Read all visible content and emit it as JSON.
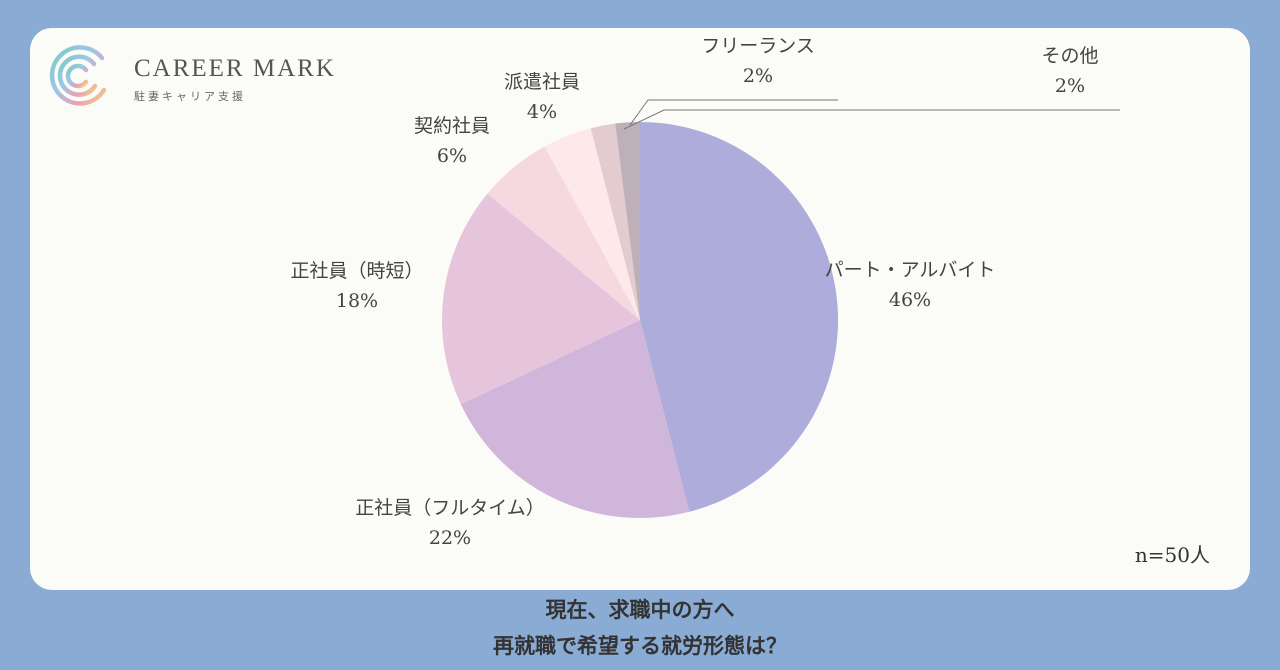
{
  "brand": {
    "name": "CAREER MARK",
    "tagline": "駐妻キャリア支援"
  },
  "sample_size": "n=50人",
  "title_lines": [
    "現在、求職中の方へ",
    "再就職で希望する就労形態は？"
  ],
  "chart_data": {
    "type": "pie",
    "title": "現在、求職中の方へ 再就職で希望する就労形態は？",
    "unit": "%",
    "start": "12 o'clock, clockwise",
    "slices": [
      {
        "label": "パート・アルバイト",
        "value": 46,
        "display": "46%",
        "color": "#aeacdb"
      },
      {
        "label": "正社員（フルタイム）",
        "value": 22,
        "display": "22%",
        "color": "#d1b6db"
      },
      {
        "label": "正社員（時短）",
        "value": 18,
        "display": "18%",
        "color": "#e6c5dc"
      },
      {
        "label": "契約社員",
        "value": 6,
        "display": "6%",
        "color": "#f5d8e0"
      },
      {
        "label": "派遣社員",
        "value": 4,
        "display": "4%",
        "color": "#fde8ea"
      },
      {
        "label": "フリーランス",
        "value": 2,
        "display": "2%",
        "color": "#e3cbd0"
      },
      {
        "label": "その他",
        "value": 2,
        "display": "2%",
        "color": "#beb0b9"
      }
    ],
    "legend": "none (labels placed beside slices)"
  }
}
